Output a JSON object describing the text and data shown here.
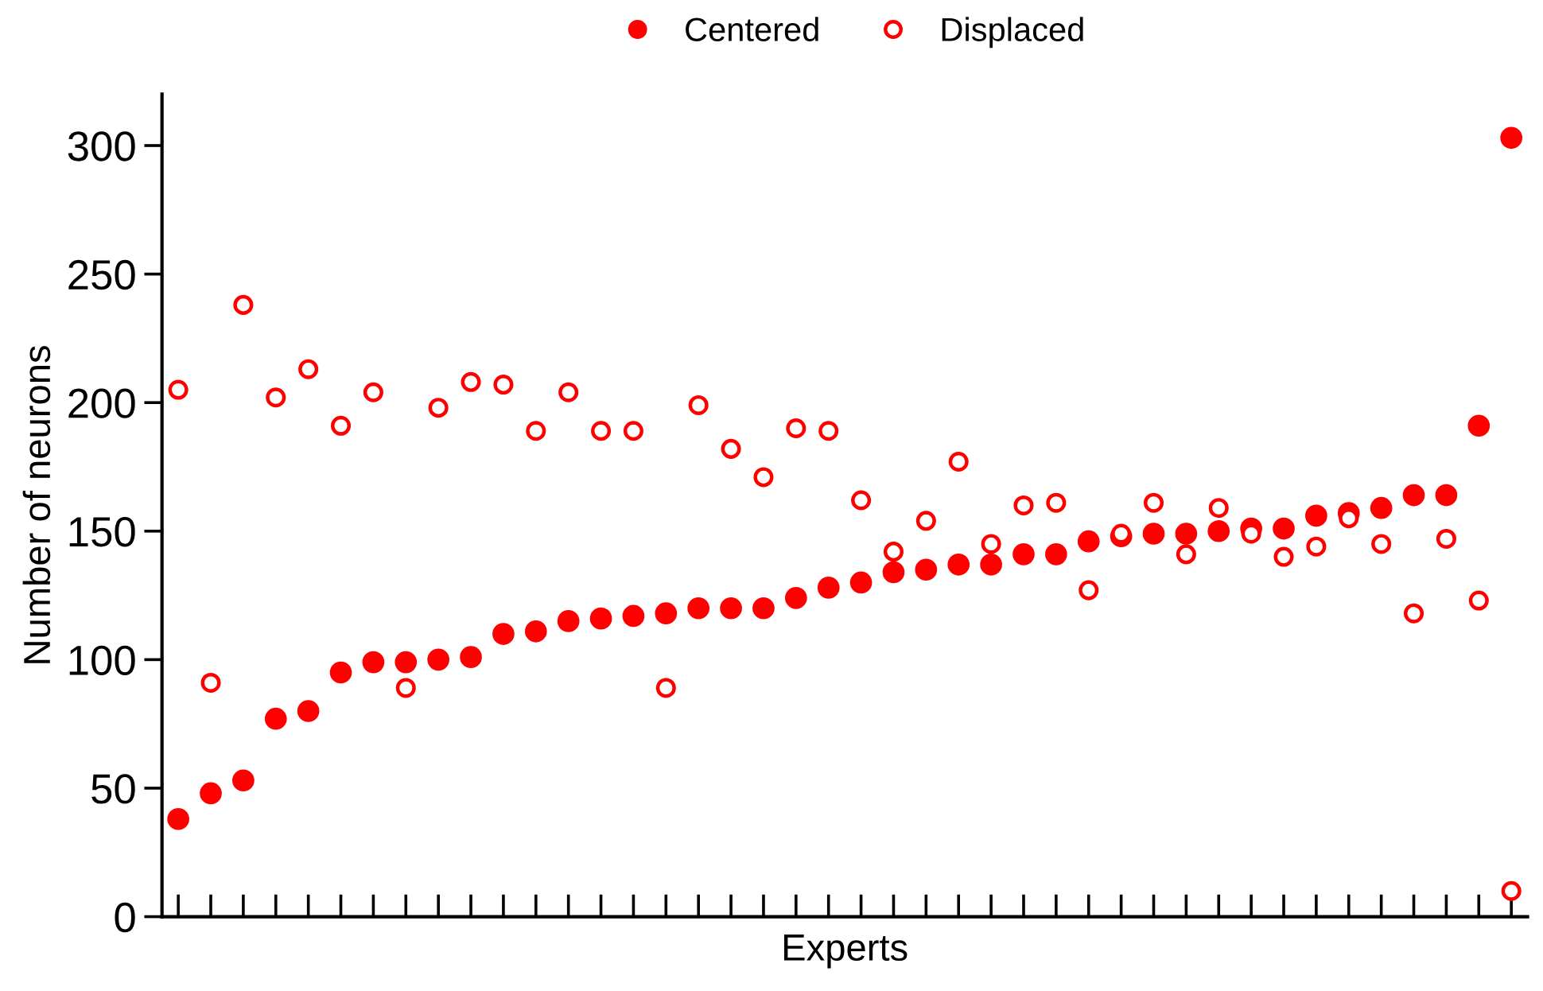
{
  "chart_data": {
    "type": "scatter",
    "xlabel": "Experts",
    "ylabel": "Number of neurons",
    "categories": [
      null,
      null,
      null,
      null,
      null,
      null,
      null,
      null,
      null,
      null,
      null,
      null,
      null,
      null,
      null,
      null,
      null,
      null,
      null,
      null,
      null,
      null,
      null,
      null,
      null,
      null,
      null,
      null,
      null,
      null,
      null,
      null,
      null,
      null,
      null,
      null,
      null,
      null,
      null,
      null,
      null,
      null
    ],
    "series": [
      {
        "name": "Centered",
        "color": "#ff0000",
        "marker": "circle",
        "values": [
          38,
          48,
          53,
          77,
          80,
          95,
          99,
          99,
          100,
          101,
          110,
          111,
          115,
          116,
          117,
          118,
          120,
          120,
          120,
          124,
          128,
          130,
          134,
          135,
          137,
          137,
          141,
          141,
          146,
          148,
          149,
          149,
          150,
          151,
          151,
          156,
          157,
          159,
          164,
          164,
          191,
          303
        ]
      },
      {
        "name": "Displaced",
        "color": "#ff0000",
        "marker": "open_circle",
        "values": [
          205,
          91,
          238,
          202,
          213,
          191,
          204,
          89,
          198,
          208,
          207,
          189,
          204,
          189,
          189,
          89,
          199,
          182,
          171,
          190,
          189,
          162,
          142,
          154,
          177,
          145,
          160,
          161,
          127,
          149,
          161,
          141,
          159,
          149,
          140,
          144,
          155,
          145,
          118,
          147,
          123,
          10
        ]
      }
    ],
    "ylim": [
      0,
      320
    ],
    "yticks": [
      0,
      50,
      100,
      150,
      200,
      250,
      300
    ],
    "grid": false,
    "legend": "top"
  }
}
